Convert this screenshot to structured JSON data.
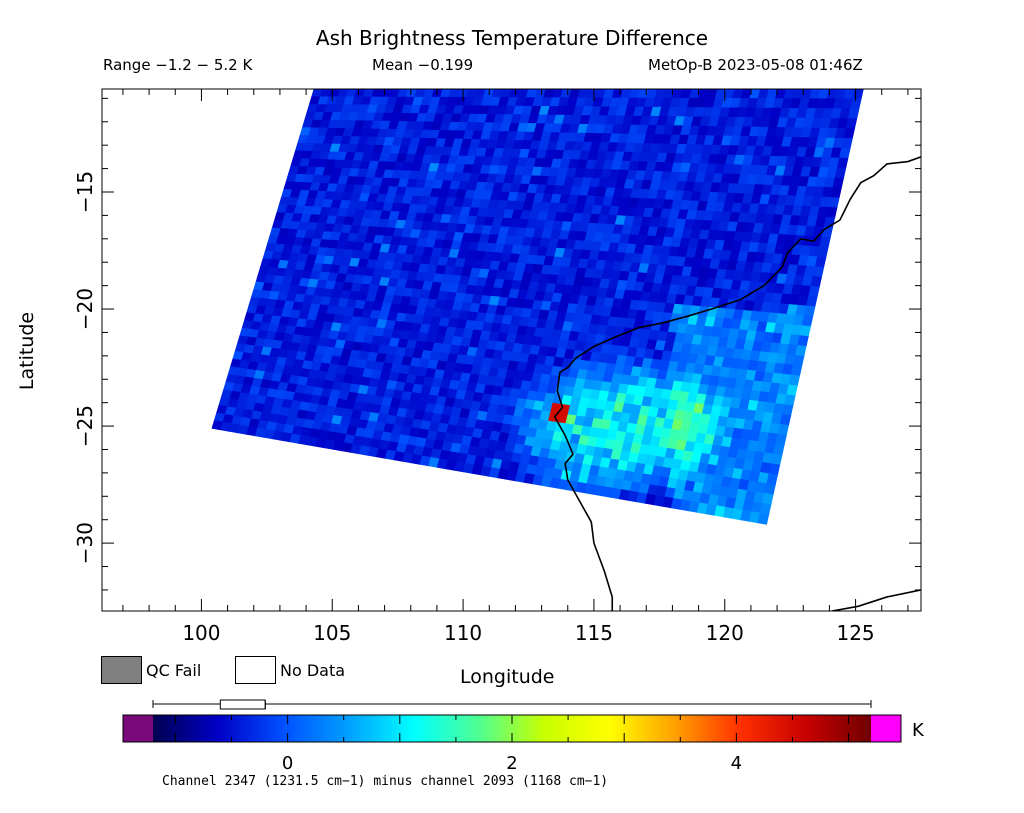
{
  "chart_data": {
    "type": "heatmap",
    "title": "Ash Brightness Temperature Difference",
    "range_text": "Range −1.2 − 5.2 K",
    "mean_text": "Mean −0.199",
    "satellite_text": "MetOp-B 2023-05-08 01:46Z",
    "xlabel": "Longitude",
    "ylabel": "Latitude",
    "x_ticks": [
      "100",
      "105",
      "110",
      "115",
      "120",
      "125"
    ],
    "y_ticks": [
      "−15",
      "−20",
      "−25",
      "−30"
    ],
    "xlim": [
      96.2,
      127.5
    ],
    "ylim": [
      -32.9,
      -10.6
    ],
    "value_range": [
      -1.2,
      5.2
    ],
    "mean": -0.199,
    "swath_corners_lonlat": [
      [
        104.3,
        -10.6
      ],
      [
        125.3,
        -10.6
      ],
      [
        121.6,
        -29.2
      ],
      [
        100.4,
        -25.1
      ]
    ],
    "features": [
      {
        "label": "background",
        "lon": 110,
        "lat": -18,
        "value": -0.4
      },
      {
        "label": "warm region",
        "lon": 116,
        "lat": -25,
        "value": 1.2
      },
      {
        "label": "peak",
        "lon": 113.6,
        "lat": -24.4,
        "value": 4.5
      }
    ],
    "colorbar": {
      "ticks": [
        "0",
        "2",
        "4"
      ],
      "tick_values": [
        0,
        2,
        4
      ],
      "unit": "K",
      "colors": [
        "#000050",
        "#0000c8",
        "#0050ff",
        "#00a0ff",
        "#00ffff",
        "#50ff90",
        "#c8ff00",
        "#ffff00",
        "#ffa000",
        "#ff3000",
        "#c80000",
        "#700000"
      ],
      "under_color": "#7a0a7a",
      "over_color": "#ff00ff"
    },
    "legend": [
      {
        "label": "QC Fail",
        "color": "#808080"
      },
      {
        "label": "No Data",
        "color": "#ffffff"
      }
    ],
    "caption": "Channel 2347 (1231.5 cm−1) minus channel 2093 (1168 cm−1)"
  }
}
